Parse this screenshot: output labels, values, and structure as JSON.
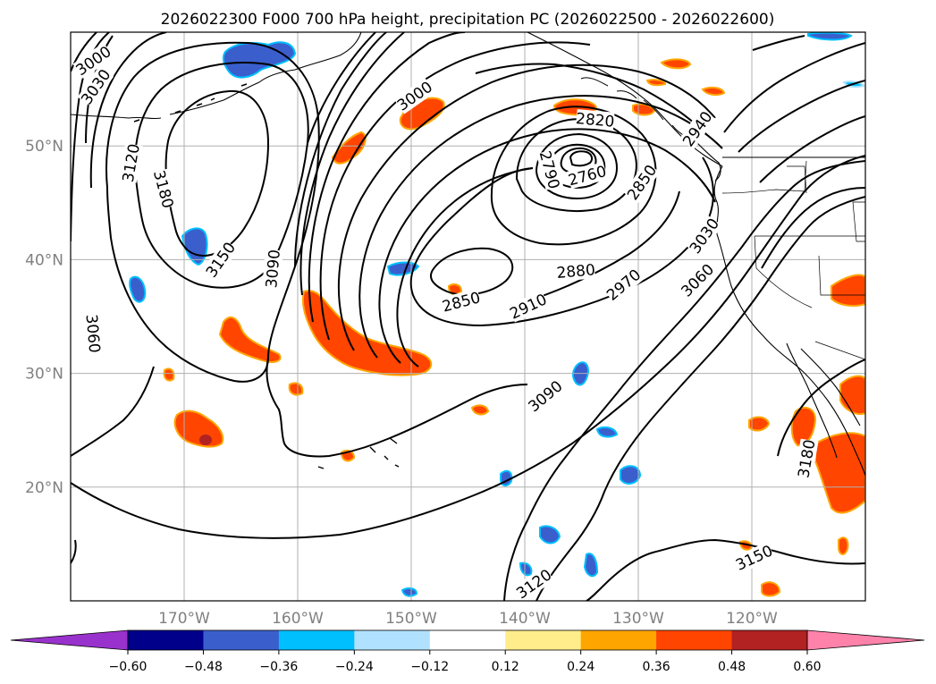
{
  "title": "2026022300 F000 700 hPa height, precipitation PC (2026022500 - 2026022600)",
  "colors": {
    "frame": "#000000",
    "grid": "#b0b0b0",
    "contour": "#000000",
    "coast": "#000000",
    "tick_label": "#808080"
  },
  "axes": {
    "lon_range": [
      -180,
      -110
    ],
    "lat_range": [
      10,
      60
    ],
    "lon_ticks": [
      {
        "value": -170,
        "label": "170°W"
      },
      {
        "value": -160,
        "label": "160°W"
      },
      {
        "value": -150,
        "label": "150°W"
      },
      {
        "value": -140,
        "label": "140°W"
      },
      {
        "value": -130,
        "label": "130°W"
      },
      {
        "value": -120,
        "label": "120°W"
      }
    ],
    "lat_ticks": [
      {
        "value": 20,
        "label": "20°N"
      },
      {
        "value": 30,
        "label": "30°N"
      },
      {
        "value": 40,
        "label": "40°N"
      },
      {
        "value": 50,
        "label": "50°N"
      }
    ]
  },
  "colorbar": {
    "extend": "both",
    "boundaries": [
      -0.72,
      -0.6,
      -0.48,
      -0.36,
      -0.24,
      -0.12,
      0.12,
      0.24,
      0.36,
      0.48,
      0.6,
      0.72
    ],
    "colors": [
      "#9932cc",
      "#00008b",
      "#3a5fcd",
      "#00bfff",
      "#b0e2ff",
      "#ffffff",
      "#ffec8b",
      "#ffa500",
      "#ff4500",
      "#b22222",
      "#ff82ab"
    ],
    "tick_labels": [
      "−0.60",
      "−0.48",
      "−0.36",
      "−0.24",
      "−0.12",
      "0.12",
      "0.24",
      "0.36",
      "0.48",
      "0.60"
    ]
  },
  "contour_labels": [
    {
      "text": "3000",
      "lon": -178.0,
      "lat": 57.5,
      "angle": -35
    },
    {
      "text": "3030",
      "lon": -177.8,
      "lat": 55.2,
      "angle": -55
    },
    {
      "text": "3120",
      "lon": -174.7,
      "lat": 48.5,
      "angle": -80
    },
    {
      "text": "3180",
      "lon": -171.8,
      "lat": 46.2,
      "angle": 75
    },
    {
      "text": "3150",
      "lon": -166.8,
      "lat": 40.0,
      "angle": -55
    },
    {
      "text": "3090",
      "lon": -162.2,
      "lat": 39.2,
      "angle": -85
    },
    {
      "text": "3060",
      "lon": -178.0,
      "lat": 33.5,
      "angle": 85
    },
    {
      "text": "3000",
      "lon": -149.7,
      "lat": 54.4,
      "angle": -35
    },
    {
      "text": "2820",
      "lon": -133.8,
      "lat": 52.3,
      "angle": 5
    },
    {
      "text": "2940",
      "lon": -124.8,
      "lat": 51.5,
      "angle": -55
    },
    {
      "text": "2790",
      "lon": -137.8,
      "lat": 47.9,
      "angle": 75
    },
    {
      "text": "2760",
      "lon": -134.5,
      "lat": 47.4,
      "angle": -15
    },
    {
      "text": "2850",
      "lon": -129.7,
      "lat": 46.8,
      "angle": -55
    },
    {
      "text": "3030",
      "lon": -124.2,
      "lat": 42.1,
      "angle": -55
    },
    {
      "text": "2880",
      "lon": -135.5,
      "lat": 39.0,
      "angle": -5
    },
    {
      "text": "3060",
      "lon": -124.8,
      "lat": 38.2,
      "angle": -45
    },
    {
      "text": "2970",
      "lon": -131.3,
      "lat": 37.8,
      "angle": -40
    },
    {
      "text": "2850",
      "lon": -145.6,
      "lat": 36.3,
      "angle": -15
    },
    {
      "text": "2910",
      "lon": -139.7,
      "lat": 35.9,
      "angle": -25
    },
    {
      "text": "3090",
      "lon": -138.2,
      "lat": 28.0,
      "angle": -40
    },
    {
      "text": "3180",
      "lon": -115.2,
      "lat": 22.5,
      "angle": -80
    },
    {
      "text": "3150",
      "lon": -119.8,
      "lat": 13.8,
      "angle": -25
    },
    {
      "text": "3120",
      "lon": -139.2,
      "lat": 11.5,
      "angle": -35
    }
  ]
}
